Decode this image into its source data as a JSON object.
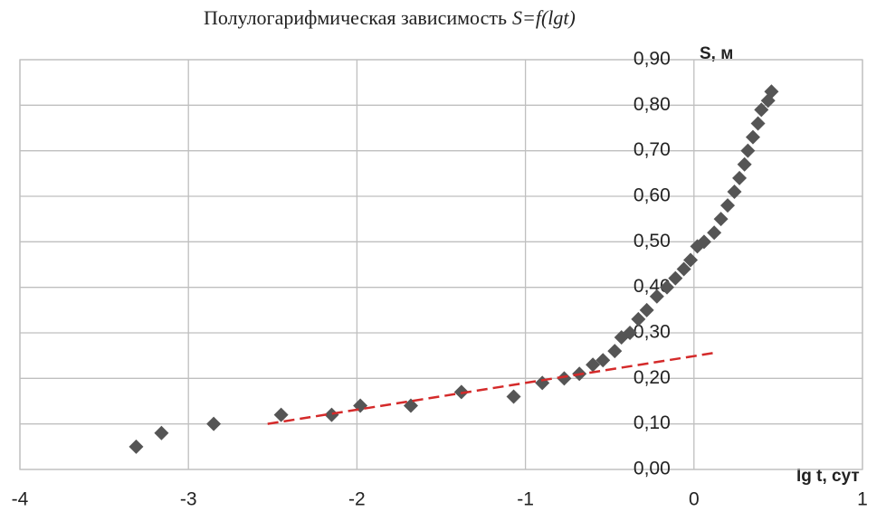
{
  "chart_data": {
    "type": "scatter",
    "title": "Полулогарифмическая зависимость",
    "title_formula": "S=f(lgt)",
    "x_label": "lg t, сут",
    "y_label": "S, м",
    "x": [
      -3.31,
      -3.16,
      -2.85,
      -2.45,
      -2.15,
      -1.98,
      -1.68,
      -1.38,
      -1.07,
      -0.9,
      -0.77,
      -0.68,
      -0.6,
      -0.54,
      -0.47,
      -0.43,
      -0.38,
      -0.33,
      -0.28,
      -0.22,
      -0.16,
      -0.11,
      -0.06,
      -0.02,
      0.02,
      0.06,
      0.12,
      0.16,
      0.2,
      0.24,
      0.27,
      0.3,
      0.32,
      0.35,
      0.38,
      0.4,
      0.44,
      0.46
    ],
    "values": [
      0.05,
      0.08,
      0.1,
      0.12,
      0.12,
      0.14,
      0.14,
      0.17,
      0.16,
      0.19,
      0.2,
      0.21,
      0.23,
      0.24,
      0.26,
      0.29,
      0.3,
      0.33,
      0.35,
      0.38,
      0.4,
      0.42,
      0.44,
      0.46,
      0.49,
      0.5,
      0.52,
      0.55,
      0.58,
      0.61,
      0.64,
      0.67,
      0.7,
      0.73,
      0.76,
      0.79,
      0.81,
      0.83
    ],
    "color": "#555555",
    "trendline": {
      "x": [
        -2.53,
        0.12
      ],
      "y": [
        0.1,
        0.256
      ],
      "color": "#d42a2a"
    },
    "xlim": [
      -4,
      1
    ],
    "xticks": [
      -4,
      -3,
      -2,
      -1,
      0,
      1
    ],
    "ylim": [
      0,
      0.9
    ],
    "yticks": [
      {
        "value": 0,
        "label": "0,00"
      },
      {
        "value": 0.1,
        "label": "0,10"
      },
      {
        "value": 0.2,
        "label": "0,20"
      },
      {
        "value": 0.3,
        "label": "0,30"
      },
      {
        "value": 0.4,
        "label": "0,40"
      },
      {
        "value": 0.5,
        "label": "0,50"
      },
      {
        "value": 0.6,
        "label": "0,60"
      },
      {
        "value": 0.7,
        "label": "0,70"
      },
      {
        "value": 0.8,
        "label": "0,80"
      },
      {
        "value": 0.9,
        "label": "0,90"
      }
    ],
    "grid": true
  }
}
